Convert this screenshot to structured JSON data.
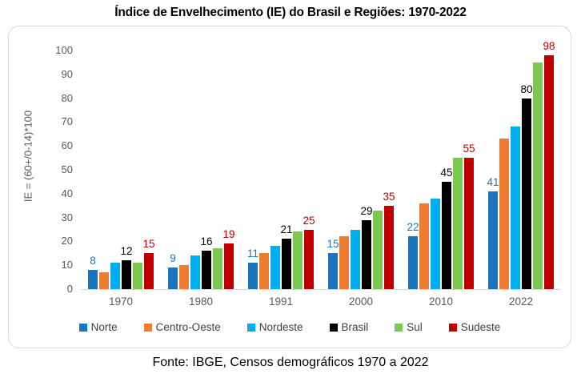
{
  "title": "Índice de Envelhecimento (IE) do Brasil e Regiões: 1970-2022",
  "source_note": "Fonte: IBGE, Censos demográficos 1970 a 2022",
  "chart_data": {
    "type": "bar",
    "title": "Índice de Envelhecimento (IE) do Brasil e Regiões: 1970-2022",
    "ylabel": "IE = (60+/0-14)*100",
    "xlabel": "",
    "categories": [
      "1970",
      "1980",
      "1991",
      "2000",
      "2010",
      "2022"
    ],
    "series": [
      {
        "name": "Norte",
        "color": "#1B75BC",
        "values": [
          8,
          9,
          11,
          15,
          22,
          41
        ],
        "show_labels": true
      },
      {
        "name": "Centro-Oeste",
        "color": "#ED7D31",
        "values": [
          7,
          10,
          15,
          22,
          36,
          63
        ],
        "show_labels": false
      },
      {
        "name": "Nordeste",
        "color": "#00AEEF",
        "values": [
          11,
          14,
          18,
          25,
          38,
          68
        ],
        "show_labels": false
      },
      {
        "name": "Brasil",
        "color": "#000000",
        "values": [
          12,
          16,
          21,
          29,
          45,
          80
        ],
        "show_labels": true
      },
      {
        "name": "Sul",
        "color": "#7DC850",
        "values": [
          11,
          17,
          24,
          33,
          55,
          95
        ],
        "show_labels": false
      },
      {
        "name": "Sudeste",
        "color": "#C00000",
        "values": [
          15,
          19,
          25,
          35,
          55,
          98
        ],
        "show_labels": true
      }
    ],
    "ylim": [
      0,
      100
    ],
    "yticks": [
      0,
      10,
      20,
      30,
      40,
      50,
      60,
      70,
      80,
      90,
      100
    ],
    "grid": false,
    "legend_position": "bottom",
    "axis_text_color": "#595959",
    "baseline_color": "#D9D9D9"
  }
}
